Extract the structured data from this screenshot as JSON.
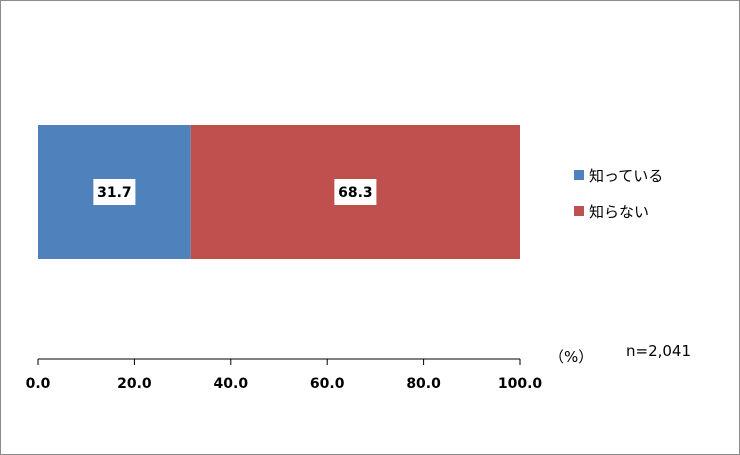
{
  "chart_data": {
    "type": "bar",
    "orientation": "horizontal",
    "stacked": true,
    "categories": [
      ""
    ],
    "series": [
      {
        "name": "知っている",
        "values": [
          31.7
        ],
        "color": "#4f81bd"
      },
      {
        "name": "知らない",
        "values": [
          68.3
        ],
        "color": "#c0504d"
      }
    ],
    "xlim": [
      0,
      100
    ],
    "x_ticks": [
      "0.0",
      "20.0",
      "40.0",
      "60.0",
      "80.0",
      "100.0"
    ],
    "unit": "（%）",
    "sample_size": "n=2,041",
    "legend_position": "right",
    "grid": false
  }
}
